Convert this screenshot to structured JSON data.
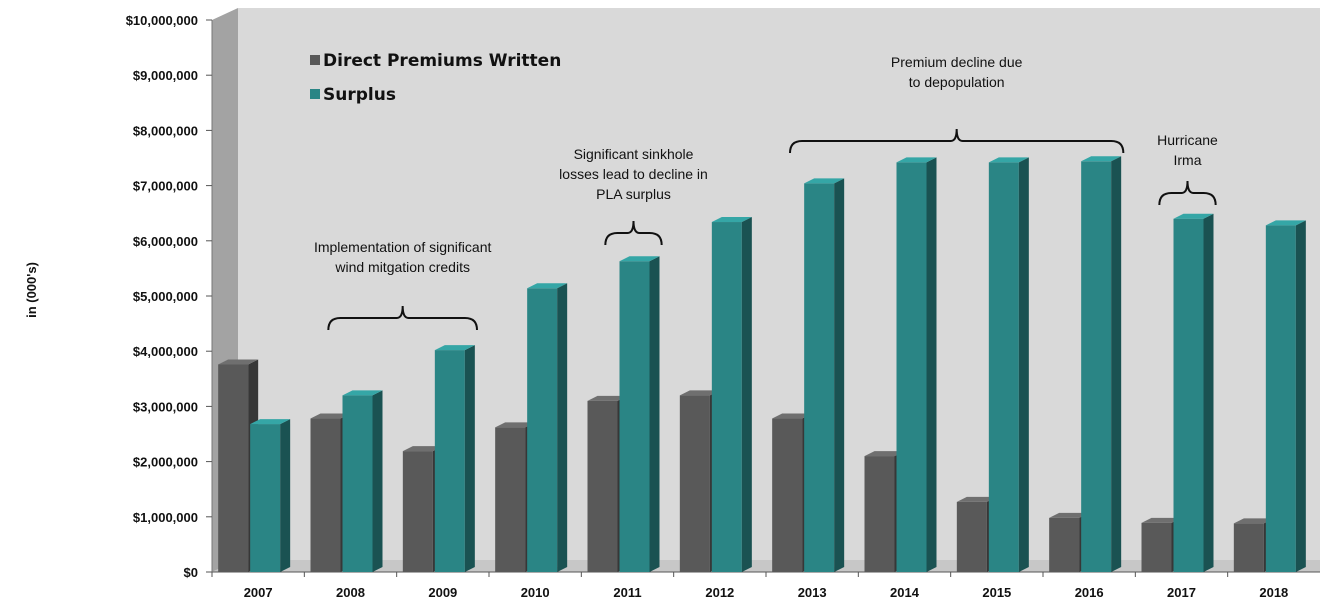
{
  "chart_data": {
    "type": "bar",
    "title": "",
    "xlabel": "",
    "ylabel": "in (000's)",
    "ylim": [
      0,
      10000000
    ],
    "y_ticks": [
      "$0",
      "$1,000,000",
      "$2,000,000",
      "$3,000,000",
      "$4,000,000",
      "$5,000,000",
      "$6,000,000",
      "$7,000,000",
      "$8,000,000",
      "$9,000,000",
      "$10,000,000"
    ],
    "categories": [
      "2007",
      "2008",
      "2009",
      "2010",
      "2011",
      "2012",
      "2013",
      "2014",
      "2015",
      "2016",
      "2017",
      "2018"
    ],
    "series": [
      {
        "name": "Direct Premiums Written",
        "color": "#595959",
        "values": [
          3760000,
          2780000,
          2190000,
          2620000,
          3100000,
          3200000,
          2780000,
          2100000,
          1270000,
          980000,
          890000,
          880000
        ]
      },
      {
        "name": "Surplus",
        "color": "#2a8585",
        "values": [
          2680000,
          3200000,
          4020000,
          5140000,
          5630000,
          6340000,
          7040000,
          7420000,
          7420000,
          7440000,
          6400000,
          6280000
        ]
      }
    ],
    "legend_position": "top-left",
    "grid": false,
    "annotations": [
      {
        "lines": [
          "Implementation of significant",
          "wind mitgation credits"
        ],
        "from": "2008",
        "to": "2009"
      },
      {
        "lines": [
          "Significant sinkhole",
          "losses lead to decline in",
          "PLA surplus"
        ],
        "from": "2011",
        "to": "2011"
      },
      {
        "lines": [
          "Premium decline due",
          "to depopulation"
        ],
        "from": "2013",
        "to": "2016"
      },
      {
        "lines": [
          "Hurricane",
          "Irma"
        ],
        "from": "2017",
        "to": "2017"
      }
    ]
  }
}
